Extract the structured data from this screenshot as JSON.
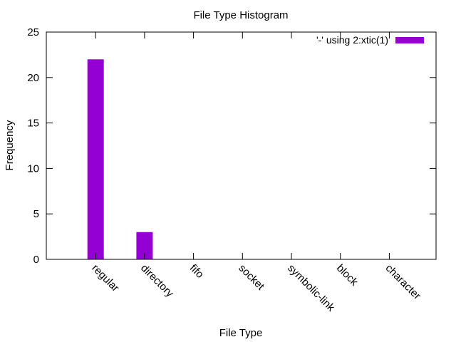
{
  "chart_data": {
    "type": "bar",
    "title": "File Type Histogram",
    "xlabel": "File Type",
    "ylabel": "Frequency",
    "categories": [
      "regular",
      "directory",
      "fifo",
      "socket",
      "symbolic-link",
      "block",
      "character"
    ],
    "series": [
      {
        "name": "'-' using 2:xtic(1)",
        "color": "#9400d3",
        "values": [
          22,
          3,
          0,
          0,
          0,
          0,
          0
        ]
      }
    ],
    "ylim": [
      0,
      25
    ],
    "yticks": [
      0,
      5,
      10,
      15,
      20,
      25
    ],
    "grid": false,
    "legend_position": "top-right"
  }
}
